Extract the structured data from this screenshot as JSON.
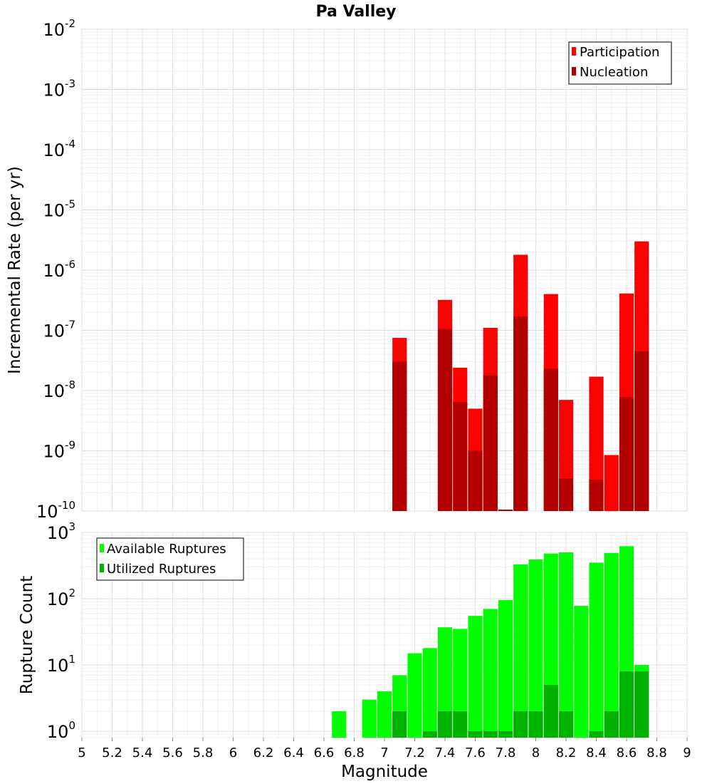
{
  "chart_data": [
    {
      "type": "bar",
      "title": "Pa Valley",
      "xlabel": "",
      "ylabel": "Incremental Rate (per yr)",
      "x_scale": "linear",
      "y_scale": "log",
      "xlim": [
        5,
        9
      ],
      "ylim": [
        1e-10,
        0.01
      ],
      "y_tick_labels": [
        {
          "base": "10",
          "exp": "-10"
        },
        {
          "base": "10",
          "exp": "-9"
        },
        {
          "base": "10",
          "exp": "-8"
        },
        {
          "base": "10",
          "exp": "-7"
        },
        {
          "base": "10",
          "exp": "-6"
        },
        {
          "base": "10",
          "exp": "-5"
        },
        {
          "base": "10",
          "exp": "-4"
        },
        {
          "base": "10",
          "exp": "-3"
        },
        {
          "base": "10",
          "exp": "-2"
        }
      ],
      "grid": true,
      "legend_position": "top-right",
      "series": [
        {
          "name": "Participation",
          "color": "#ff0000",
          "x": [
            7.1,
            7.3,
            7.4,
            7.5,
            7.6,
            7.7,
            7.8,
            7.9,
            8.0,
            8.1,
            8.2,
            8.3,
            8.4,
            8.5,
            8.6,
            8.7
          ],
          "values": [
            7.5e-08,
            0,
            3.2e-07,
            2.4e-08,
            5e-09,
            1.1e-07,
            1e-10,
            1.8e-06,
            0,
            4e-07,
            7e-09,
            0,
            1.7e-08,
            8.5e-10,
            4.1e-07,
            3e-06
          ]
        },
        {
          "name": "Nucleation",
          "color": "#b20000",
          "x": [
            7.1,
            7.3,
            7.4,
            7.5,
            7.6,
            7.7,
            7.8,
            7.9,
            8.0,
            8.1,
            8.2,
            8.3,
            8.4,
            8.5,
            8.6,
            8.7
          ],
          "values": [
            3e-08,
            0,
            1.05e-07,
            6.5e-09,
            1e-09,
            1.8e-08,
            1e-10,
            1.7e-07,
            0,
            2.3e-08,
            3.5e-10,
            0,
            3.3e-10,
            0,
            7.8e-09,
            4.5e-08
          ]
        }
      ]
    },
    {
      "type": "bar",
      "title": "",
      "xlabel": "Magnitude",
      "ylabel": "Rupture Count",
      "x_scale": "linear",
      "y_scale": "log",
      "xlim": [
        5,
        9
      ],
      "ylim": [
        0.8,
        1000
      ],
      "x_ticks": [
        5,
        5.2,
        5.4,
        5.6,
        5.8,
        6,
        6.2,
        6.4,
        6.6,
        6.8,
        7,
        7.2,
        7.4,
        7.6,
        7.8,
        8,
        8.2,
        8.4,
        8.6,
        8.8,
        9
      ],
      "x_tick_labels": [
        "5",
        "5.2",
        "5.4",
        "5.6",
        "5.8",
        "6",
        "6.2",
        "6.4",
        "6.6",
        "6.8",
        "7",
        "7.2",
        "7.4",
        "7.6",
        "7.8",
        "8",
        "8.2",
        "8.4",
        "8.6",
        "8.8",
        "9"
      ],
      "y_tick_labels": [
        {
          "base": "10",
          "exp": "0"
        },
        {
          "base": "10",
          "exp": "1"
        },
        {
          "base": "10",
          "exp": "2"
        },
        {
          "base": "10",
          "exp": "3"
        }
      ],
      "grid": true,
      "legend_position": "top-left",
      "series": [
        {
          "name": "Available Ruptures",
          "color": "#00ff00",
          "x": [
            6.7,
            6.8,
            6.9,
            7.0,
            7.1,
            7.2,
            7.3,
            7.4,
            7.5,
            7.6,
            7.7,
            7.8,
            7.9,
            8.0,
            8.1,
            8.2,
            8.3,
            8.4,
            8.5,
            8.6,
            8.7
          ],
          "values": [
            2,
            0,
            3,
            4,
            7,
            15,
            18,
            37,
            35,
            55,
            70,
            95,
            330,
            390,
            480,
            500,
            78,
            350,
            490,
            620,
            10
          ]
        },
        {
          "name": "Utilized Ruptures",
          "color": "#00b200",
          "x": [
            6.7,
            6.8,
            6.9,
            7.0,
            7.1,
            7.2,
            7.3,
            7.4,
            7.5,
            7.6,
            7.7,
            7.8,
            7.9,
            8.0,
            8.1,
            8.2,
            8.3,
            8.4,
            8.5,
            8.6,
            8.7
          ],
          "values": [
            0,
            0,
            0,
            0,
            2,
            0,
            1,
            2,
            2,
            1,
            1,
            1,
            2,
            2,
            5,
            2,
            0,
            1,
            2,
            8,
            8
          ]
        }
      ]
    }
  ]
}
